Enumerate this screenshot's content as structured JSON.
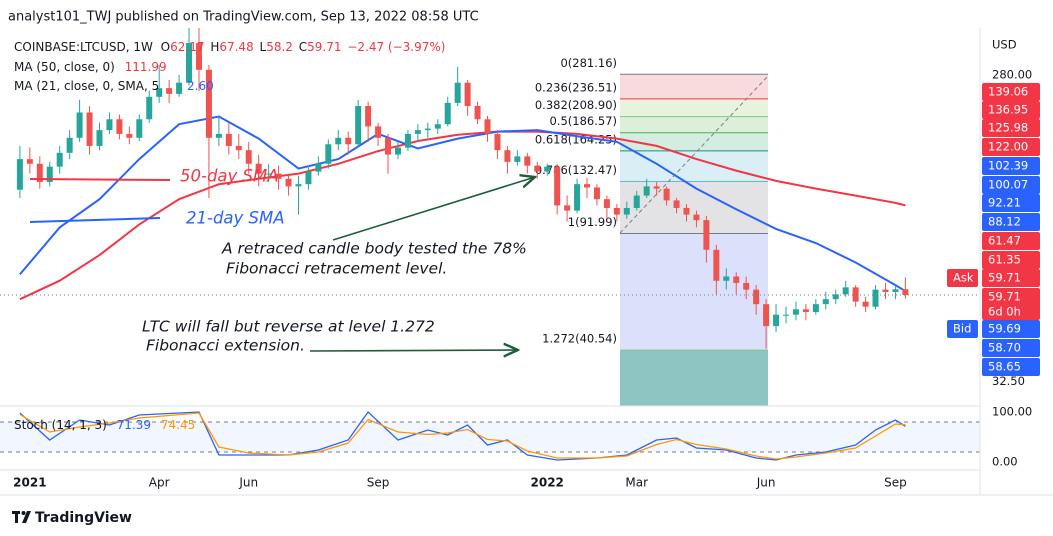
{
  "header": {
    "publisher": "analyst101_TWJ published on TradingView.com, Sep 13, 2022 08:58 UTC",
    "currency": "USD",
    "ma21_value_fragment": "2.60",
    "brand": "TradingView"
  },
  "chart_data": [
    {
      "type": "candlestick",
      "title": "COINBASE:LTCUSD, 1W",
      "ohlc_labels": [
        "O",
        "H",
        "L",
        "C"
      ],
      "change_label": "−2.47 (−3.97%)",
      "log_scale": true,
      "up_color": "#26a69a",
      "down_color": "#ef5350",
      "xlim": [
        -2,
        96.5
      ],
      "xticks": [
        {
          "value": 1,
          "label": "2021"
        },
        {
          "value": 14,
          "label": "Apr"
        },
        {
          "value": 23,
          "label": "Jun"
        },
        {
          "value": 36,
          "label": "Sep"
        },
        {
          "value": 53,
          "label": "2022"
        },
        {
          "value": 62,
          "label": "Mar"
        },
        {
          "value": 75,
          "label": "Jun"
        },
        {
          "value": 88,
          "label": "Sep"
        }
      ],
      "ylim": [
        27.4,
        389
      ],
      "yticks": [
        {
          "value": 280,
          "label": "280.00"
        },
        {
          "value": 32.5,
          "label": "32.50"
        }
      ],
      "open": [
        125,
        155,
        150,
        132,
        147,
        162,
        180,
        215,
        170,
        190,
        205,
        185,
        180,
        205,
        240,
        255,
        245,
        265,
        350,
        290,
        180,
        185,
        170,
        165,
        150,
        140,
        140,
        135,
        128,
        130,
        142,
        150,
        172,
        180,
        172,
        225,
        195,
        180,
        160,
        168,
        185,
        190,
        192,
        198,
        230,
        265,
        225,
        205,
        185,
        165,
        152,
        158,
        148,
        142,
        147,
        112,
        108,
        130,
        127,
        117,
        110,
        105,
        110,
        120,
        128,
        126,
        116,
        110,
        105,
        101,
        82,
        66,
        68,
        65,
        62,
        56,
        48,
        52,
        52,
        54,
        53,
        56,
        58,
        60,
        63,
        57,
        55,
        62,
        61,
        62.17
      ],
      "high": [
        170,
        168,
        158,
        152,
        170,
        190,
        235,
        225,
        200,
        215,
        212,
        195,
        212,
        250,
        300,
        270,
        280,
        390,
        412,
        300,
        210,
        200,
        185,
        175,
        160,
        150,
        148,
        140,
        138,
        148,
        158,
        178,
        190,
        188,
        235,
        232,
        200,
        185,
        175,
        190,
        198,
        200,
        205,
        240,
        296,
        270,
        232,
        210,
        190,
        170,
        165,
        162,
        152,
        150,
        150,
        120,
        135,
        136,
        130,
        120,
        113,
        115,
        124,
        135,
        132,
        128,
        118,
        113,
        108,
        104,
        85,
        72,
        70,
        68,
        64,
        58,
        56,
        55,
        57,
        56,
        58,
        61,
        62,
        66,
        64,
        59,
        64,
        65,
        64,
        67.48
      ],
      "low": [
        118,
        140,
        126,
        128,
        140,
        155,
        175,
        160,
        165,
        185,
        178,
        172,
        176,
        200,
        230,
        230,
        240,
        260,
        250,
        118,
        170,
        160,
        155,
        140,
        128,
        132,
        125,
        120,
        105,
        125,
        138,
        145,
        165,
        160,
        168,
        175,
        170,
        140,
        155,
        164,
        175,
        180,
        185,
        195,
        225,
        210,
        198,
        175,
        155,
        140,
        148,
        140,
        135,
        138,
        105,
        100,
        106,
        118,
        112,
        102,
        100,
        102,
        108,
        118,
        120,
        112,
        106,
        100,
        96,
        75,
        60,
        62,
        60,
        58,
        52,
        41,
        46,
        49,
        50,
        50,
        52,
        54,
        56,
        59,
        55,
        53,
        54,
        58,
        58,
        58.2
      ],
      "close": [
        155,
        150,
        132,
        147,
        162,
        180,
        215,
        170,
        190,
        205,
        185,
        180,
        205,
        240,
        255,
        245,
        265,
        350,
        290,
        180,
        185,
        170,
        165,
        150,
        140,
        140,
        135,
        128,
        130,
        142,
        150,
        172,
        180,
        172,
        225,
        195,
        180,
        160,
        168,
        185,
        190,
        192,
        198,
        230,
        265,
        225,
        205,
        185,
        165,
        152,
        158,
        148,
        142,
        147,
        112,
        108,
        130,
        127,
        117,
        110,
        105,
        110,
        120,
        128,
        126,
        116,
        110,
        105,
        101,
        82,
        66,
        68,
        65,
        62,
        56,
        48,
        52,
        52,
        54,
        53,
        56,
        58,
        60,
        63,
        57,
        55,
        62,
        61,
        62.17,
        59.71
      ],
      "series": [
        {
          "name": "MA (50, close, 0)",
          "color": "#f23645",
          "x": [
            0,
            4,
            8,
            12,
            16,
            20,
            24,
            28,
            32,
            36,
            40,
            44,
            48,
            52,
            56,
            60,
            64,
            68,
            72,
            76,
            80,
            84,
            88,
            89
          ],
          "values": [
            58,
            66,
            79,
            98,
            117,
            130,
            135,
            140,
            150,
            164,
            176,
            184,
            188,
            188,
            185,
            179,
            170,
            155,
            143,
            133,
            126,
            120,
            114,
            111.99
          ]
        },
        {
          "name": "MA (21, close, 0, SMA, 5",
          "color": "#2962ff",
          "x": [
            0,
            4,
            8,
            12,
            16,
            20,
            24,
            28,
            32,
            36,
            40,
            44,
            48,
            52,
            56,
            60,
            64,
            68,
            72,
            76,
            80,
            84,
            88,
            89
          ],
          "values": [
            69,
            96,
            117,
            155,
            198,
            209,
            179,
            145,
            155,
            185,
            167,
            179,
            188,
            190,
            182,
            175,
            150,
            126,
            109,
            95,
            86,
            75,
            64,
            61.35
          ]
        }
      ],
      "fib_levels": [
        {
          "value": 281.16,
          "label": "0(281.16)",
          "color": "#787b86",
          "band_color": "#fadbdd"
        },
        {
          "value": 236.51,
          "label": "0.236(236.51)",
          "color": "#f23645",
          "band_color": "#e8f3df"
        },
        {
          "value": 208.9,
          "label": "0.382(208.90)",
          "color": "#81c784",
          "band_color": "#dcefd9"
        },
        {
          "value": 186.57,
          "label": "0.5(186.57)",
          "color": "#4caf50",
          "band_color": "#d4ede0"
        },
        {
          "value": 164.25,
          "label": "0.618(164.25)",
          "color": "#089981",
          "band_color": "#d9eef5"
        },
        {
          "value": 132.47,
          "label": "0.786(132.47)",
          "color": "#64b5f6",
          "band_color": "#e3e3e5"
        },
        {
          "value": 91.99,
          "label": "1(91.99)",
          "color": "#787b86",
          "band_color": "#dbe1fb"
        },
        {
          "value": 40.54,
          "label": "1.272(40.54)",
          "color": "#81c784",
          "band_color": "#8ec5c3"
        }
      ],
      "annotations": [
        "50-day SMA",
        "21-day SMA",
        "A retraced candle body tested the 78%",
        "Fibonacci retracement level.",
        "LTC will fall but reverse at level 1.272",
        "Fibonacci extension."
      ]
    },
    {
      "type": "line",
      "title": "Stoch (14, 1, 3)",
      "xlim": [
        -2,
        96.5
      ],
      "ylim": [
        -16,
        110
      ],
      "yticks": [
        {
          "value": 100,
          "label": "100.00"
        },
        {
          "value": 0,
          "label": "0.00"
        }
      ],
      "bands": [
        20,
        80
      ],
      "series": [
        {
          "color": "#2962ff",
          "x": [
            0,
            3,
            6,
            9,
            12,
            18,
            20,
            23,
            27,
            30,
            33,
            35,
            38,
            41,
            43,
            45,
            47,
            49,
            51,
            54,
            58,
            61,
            64,
            66,
            68,
            71,
            74,
            76,
            78,
            81,
            84,
            86,
            88,
            89
          ],
          "values": [
            98,
            44,
            84,
            74,
            94,
            100,
            14,
            14,
            14,
            24,
            44,
            100,
            44,
            64,
            54,
            74,
            34,
            44,
            14,
            4,
            8,
            14,
            44,
            48,
            28,
            24,
            8,
            4,
            14,
            20,
            34,
            64,
            84,
            71.39
          ]
        },
        {
          "color": "#ff9800",
          "x": [
            0,
            3,
            6,
            9,
            12,
            18,
            20,
            23,
            27,
            30,
            33,
            35,
            38,
            41,
            43,
            45,
            47,
            49,
            51,
            54,
            58,
            61,
            64,
            66,
            68,
            71,
            74,
            76,
            78,
            81,
            84,
            86,
            88,
            89
          ],
          "values": [
            95,
            60,
            70,
            78,
            88,
            98,
            30,
            18,
            14,
            20,
            38,
            85,
            60,
            55,
            58,
            65,
            45,
            42,
            22,
            8,
            8,
            12,
            35,
            45,
            35,
            26,
            12,
            6,
            10,
            18,
            28,
            52,
            76,
            74.45
          ]
        }
      ]
    }
  ],
  "price_tags": [
    {
      "text": "139.06",
      "color": "#f23645"
    },
    {
      "text": "136.95",
      "color": "#f23645"
    },
    {
      "text": "125.98",
      "color": "#f23645"
    },
    {
      "text": "122.00",
      "color": "#f23645"
    },
    {
      "text": "102.39",
      "color": "#2962ff"
    },
    {
      "text": "100.07",
      "color": "#2962ff"
    },
    {
      "text": "92.21",
      "color": "#2962ff"
    },
    {
      "text": "88.12",
      "color": "#2962ff"
    },
    {
      "text": "61.47",
      "color": "#f23645"
    },
    {
      "text": "61.35",
      "color": "#f23645"
    },
    {
      "text": "59.71",
      "color": "#f23645",
      "side": "Ask"
    },
    {
      "text": "59.71",
      "color": "#f23645",
      "sub": "6d 0h"
    },
    {
      "text": "59.69",
      "color": "#2962ff",
      "side": "Bid"
    },
    {
      "text": "58.70",
      "color": "#2962ff"
    },
    {
      "text": "58.65",
      "color": "#2962ff"
    }
  ]
}
